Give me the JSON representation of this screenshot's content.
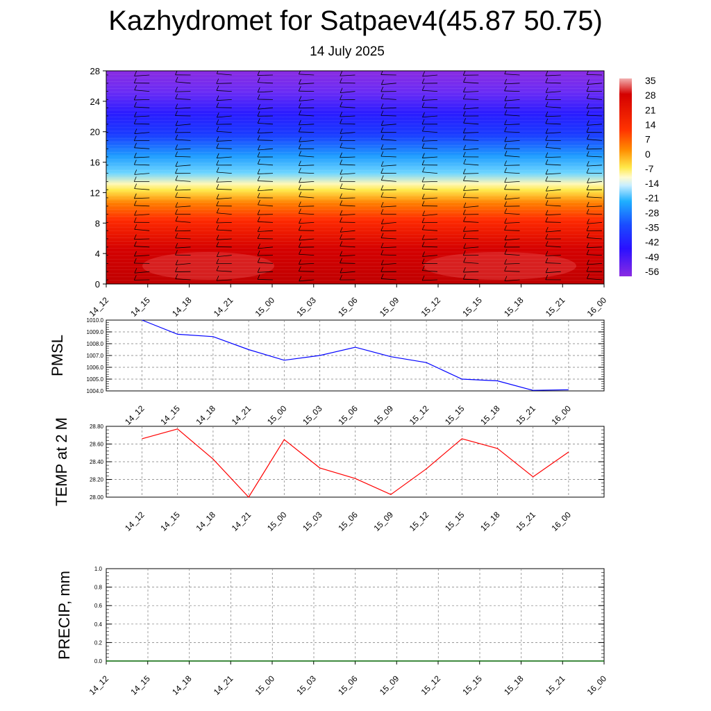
{
  "header": {
    "title": "Kazhydromet for Satpaev4(45.87 50.75)",
    "subtitle": "14 July 2025"
  },
  "chart_data": [
    {
      "type": "heatmap",
      "x": [
        "14_12",
        "14_15",
        "14_18",
        "14_21",
        "15_00",
        "15_03",
        "15_06",
        "15_09",
        "15_12",
        "15_15",
        "15_18",
        "15_21",
        "16_00"
      ],
      "y_ticks": [
        0,
        4,
        8,
        12,
        16,
        20,
        24,
        28
      ],
      "ylim": [
        0,
        28
      ],
      "colorbar_ticks": [
        35,
        28,
        21,
        14,
        7,
        0,
        -7,
        -14,
        -21,
        -28,
        -35,
        -42,
        -49,
        -56
      ],
      "colors": {
        "hot": "#c00000",
        "warm": "#ff6a00",
        "yellow": "#fff79a",
        "cyan": "#35c2ff",
        "blue": "#1533ff",
        "purple": "#8a2be2"
      },
      "overlay": "wind barbs"
    },
    {
      "type": "line",
      "ylabel": "PMSL",
      "x": [
        "14_12",
        "14_15",
        "14_18",
        "14_21",
        "15_00",
        "15_03",
        "15_06",
        "15_09",
        "15_12",
        "15_15",
        "15_18",
        "15_21",
        "16_00"
      ],
      "y": [
        1010.0,
        1008.8,
        1008.6,
        1007.5,
        1006.6,
        1007.0,
        1007.7,
        1006.9,
        1006.4,
        1005.0,
        1004.85,
        1004.05,
        1004.1
      ],
      "y_ticks": [
        "1010.0",
        "1009.0",
        "1008.0",
        "1007.0",
        "1006.0",
        "1005.0",
        "1004.0"
      ],
      "ylim": [
        1004,
        1010
      ],
      "color": "#0000ff",
      "grid": true
    },
    {
      "type": "line",
      "ylabel": "TEMP at 2 M",
      "x": [
        "14_12",
        "14_15",
        "14_18",
        "14_21",
        "15_00",
        "15_03",
        "15_06",
        "15_09",
        "15_12",
        "15_15",
        "15_18",
        "15_21",
        "16_00"
      ],
      "y": [
        28.66,
        28.77,
        28.43,
        28.0,
        28.65,
        28.33,
        28.21,
        28.03,
        28.32,
        28.66,
        28.55,
        28.23,
        28.51
      ],
      "y_ticks": [
        "28.80",
        "28.60",
        "28.40",
        "28.20",
        "28.00"
      ],
      "ylim": [
        28.0,
        28.8
      ],
      "color": "#ff0000",
      "grid": true
    },
    {
      "type": "line",
      "ylabel": "PRECIP, mm",
      "x": [
        "14_12",
        "14_15",
        "14_18",
        "14_21",
        "15_00",
        "15_03",
        "15_06",
        "15_09",
        "15_12",
        "15_15",
        "15_18",
        "15_21",
        "16_00"
      ],
      "y": [
        0,
        0,
        0,
        0,
        0,
        0,
        0,
        0,
        0,
        0,
        0,
        0,
        0
      ],
      "y_ticks": [
        "1.0",
        "0.8",
        "0.6",
        "0.4",
        "0.2",
        "0.0"
      ],
      "ylim": [
        0,
        1
      ],
      "color": "#006400",
      "grid": true
    }
  ]
}
